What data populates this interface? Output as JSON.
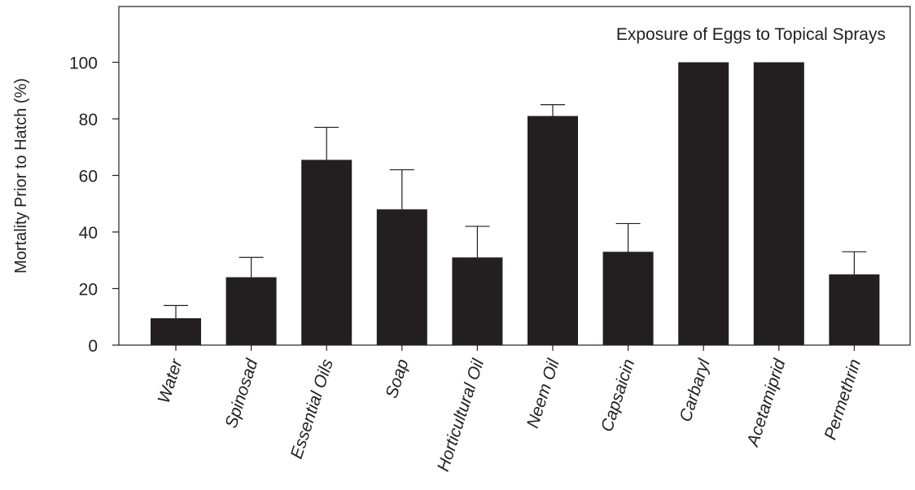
{
  "chart_data": {
    "type": "bar",
    "title": "Exposure of Eggs to Topical Sprays",
    "xlabel": "",
    "ylabel": "Mortality Prior to Hatch (%)",
    "ylim": [
      0,
      120
    ],
    "yticks": [
      0,
      20,
      40,
      60,
      80,
      100
    ],
    "categories": [
      "Water",
      "Spinosad",
      "Essential Oils",
      "Soap",
      "Horticultural Oil",
      "Neem Oil",
      "Capsaicin",
      "Carbaryl",
      "Acetamiprid",
      "Permethrin"
    ],
    "values": [
      9.5,
      24,
      65.5,
      48,
      31,
      81,
      33,
      100,
      100,
      25
    ],
    "error_upper": [
      14,
      31,
      77,
      62,
      42,
      85,
      43,
      null,
      null,
      33
    ],
    "grid": false,
    "legend": "none",
    "bar_color": "#231f20"
  }
}
